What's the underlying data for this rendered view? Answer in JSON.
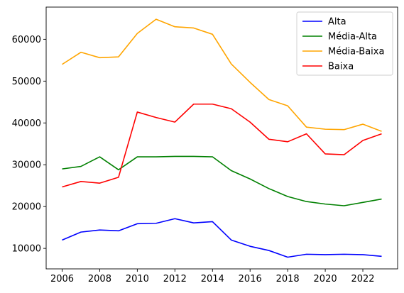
{
  "chart_data": {
    "type": "line",
    "title": "",
    "xlabel": "",
    "ylabel": "",
    "x": [
      2006,
      2007,
      2008,
      2009,
      2010,
      2011,
      2012,
      2013,
      2014,
      2015,
      2016,
      2017,
      2018,
      2019,
      2020,
      2021,
      2022,
      2023
    ],
    "series": [
      {
        "name": "Alta",
        "color": "#0000ff",
        "values": [
          12000,
          13900,
          14400,
          14200,
          15900,
          16000,
          17100,
          16100,
          16400,
          12000,
          10500,
          9500,
          7900,
          8600,
          8500,
          8600,
          8500,
          8100
        ]
      },
      {
        "name": "Média-Alta",
        "color": "#008000",
        "values": [
          29000,
          29600,
          31900,
          28800,
          31900,
          31900,
          32000,
          32000,
          31900,
          28600,
          26600,
          24300,
          22400,
          21200,
          20600,
          20200,
          21000,
          21800
        ]
      },
      {
        "name": "Média-Baixa",
        "color": "#ffa500",
        "values": [
          54000,
          56900,
          55600,
          55800,
          61400,
          64800,
          63000,
          62700,
          61200,
          54100,
          49700,
          45600,
          44100,
          39000,
          38500,
          38400,
          39700,
          38000
        ]
      },
      {
        "name": "Baixa",
        "color": "#ff0000",
        "values": [
          24700,
          26000,
          25600,
          27000,
          42600,
          41300,
          40200,
          44500,
          44500,
          43400,
          40200,
          36100,
          35500,
          37400,
          32600,
          32400,
          35800,
          37400
        ]
      }
    ],
    "xlim": [
      2005.15,
      2023.85
    ],
    "ylim": [
      5100,
      67700
    ],
    "xticks": [
      2006,
      2008,
      2010,
      2012,
      2014,
      2016,
      2018,
      2020,
      2022
    ],
    "yticks": [
      10000,
      20000,
      30000,
      40000,
      50000,
      60000
    ],
    "grid": false,
    "legend_position": "top-right"
  }
}
